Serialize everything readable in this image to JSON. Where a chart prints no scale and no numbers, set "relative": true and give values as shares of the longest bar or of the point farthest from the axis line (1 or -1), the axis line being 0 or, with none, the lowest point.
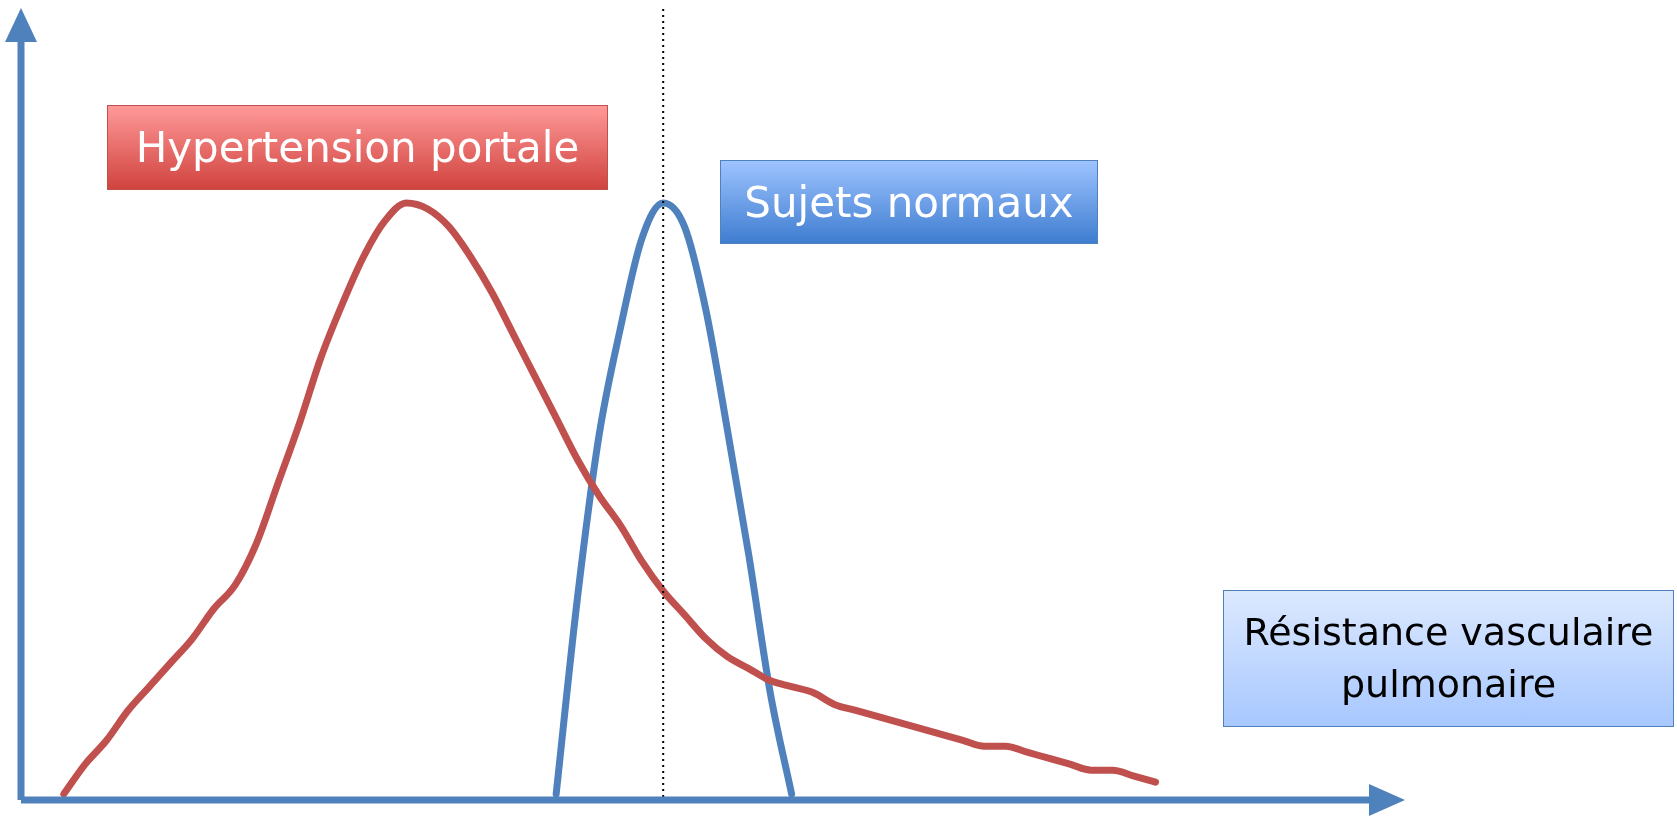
{
  "chart_data": {
    "type": "line",
    "relative": true,
    "xlabel": "Résistance vasculaire pulmonaire",
    "legend": false,
    "marker": "none",
    "line_style": "solid",
    "categories": [
      null,
      null,
      null,
      null,
      null,
      null,
      null,
      null,
      null,
      null,
      null,
      null,
      null,
      null,
      null,
      null,
      null,
      null,
      null,
      null,
      null,
      null,
      null,
      null,
      null,
      null,
      null,
      null,
      null,
      null,
      null,
      null,
      null,
      null,
      null,
      null,
      null,
      null,
      null,
      null,
      null,
      null,
      null,
      null,
      null,
      null,
      null,
      null,
      null,
      null,
      null,
      null,
      null,
      null,
      null,
      null,
      null,
      null,
      null,
      null,
      null,
      null,
      null,
      null,
      null
    ],
    "series": [
      {
        "name": "Hypertension portale",
        "color": "#c0504d",
        "values": [
          null,
          null,
          0.01,
          0.06,
          0.1,
          0.15,
          0.19,
          0.23,
          0.27,
          0.32,
          0.36,
          0.43,
          0.53,
          0.63,
          0.74,
          0.83,
          0.91,
          0.97,
          1.0,
          0.99,
          0.96,
          0.91,
          0.85,
          0.78,
          0.71,
          0.64,
          0.57,
          0.51,
          0.46,
          0.4,
          0.35,
          0.31,
          0.27,
          0.24,
          0.22,
          0.2,
          0.19,
          0.18,
          0.16,
          0.15,
          0.14,
          0.13,
          0.12,
          0.11,
          0.1,
          0.09,
          0.09,
          0.08,
          0.07,
          0.06,
          0.05,
          0.05,
          0.04,
          0.03,
          null,
          null,
          null,
          null,
          null,
          null,
          null,
          null,
          null,
          null,
          null
        ]
      },
      {
        "name": "Sujets normaux",
        "color": "#4f81bd",
        "values": [
          null,
          null,
          null,
          null,
          null,
          null,
          null,
          null,
          null,
          null,
          null,
          null,
          null,
          null,
          null,
          null,
          null,
          null,
          null,
          null,
          null,
          null,
          null,
          null,
          null,
          0.01,
          0.34,
          0.61,
          0.79,
          0.94,
          1.0,
          0.96,
          0.82,
          0.62,
          0.41,
          0.18,
          0.01,
          null,
          null,
          null,
          null,
          null,
          null,
          null,
          null,
          null,
          null,
          null,
          null,
          null,
          null,
          null,
          null,
          null,
          null,
          null,
          null,
          null,
          null,
          null,
          null,
          null,
          null,
          null,
          null
        ]
      }
    ]
  }
}
